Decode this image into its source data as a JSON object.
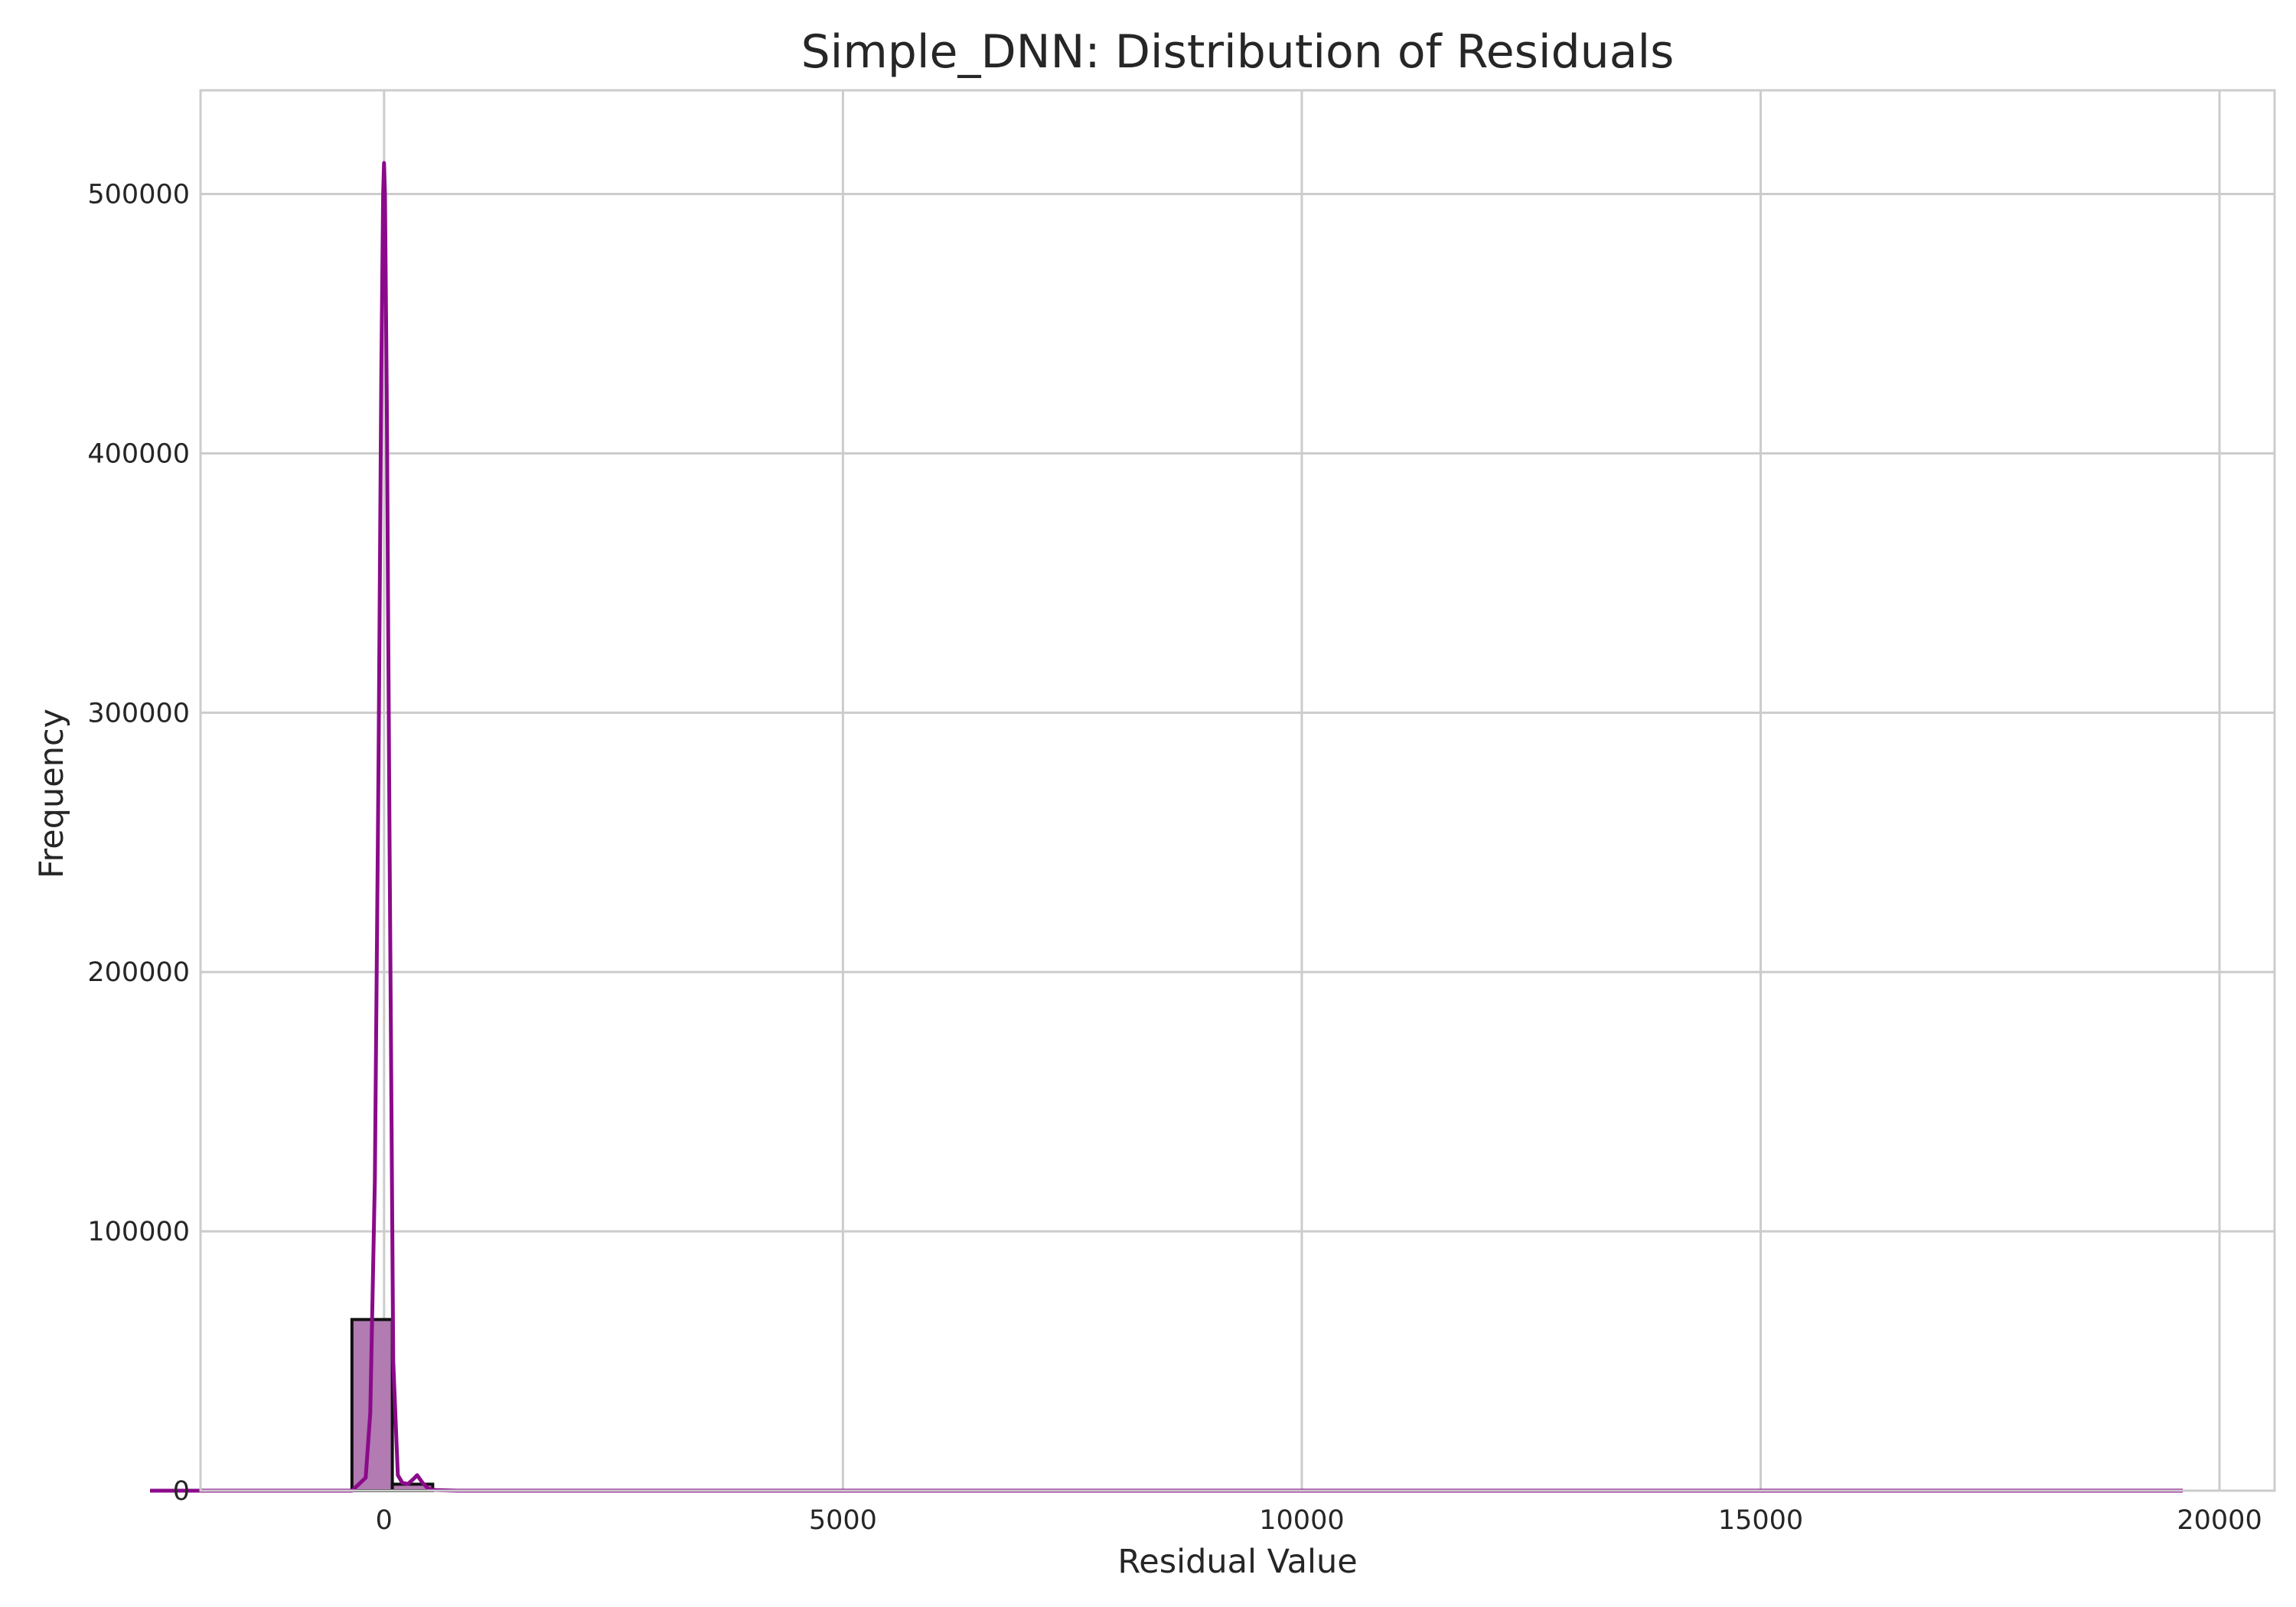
{
  "chart_data": {
    "type": "bar",
    "title": "Simple_DNN: Distribution of Residuals",
    "xlabel": "Residual Value",
    "ylabel": "Frequency",
    "xlim": [
      -2000,
      20600
    ],
    "ylim": [
      0,
      540000
    ],
    "xticks": [
      {
        "value": 0,
        "label": "0"
      },
      {
        "value": 5000,
        "label": "5000"
      },
      {
        "value": 10000,
        "label": "10000"
      },
      {
        "value": 15000,
        "label": "15000"
      },
      {
        "value": 20000,
        "label": "20000"
      }
    ],
    "yticks": [
      {
        "value": 0,
        "label": "0"
      },
      {
        "value": 100000,
        "label": "100000"
      },
      {
        "value": 200000,
        "label": "200000"
      },
      {
        "value": 300000,
        "label": "300000"
      },
      {
        "value": 400000,
        "label": "400000"
      },
      {
        "value": 500000,
        "label": "500000"
      }
    ],
    "grid": true,
    "bins": [
      {
        "x0": -350,
        "x1": 90,
        "count": 66000
      },
      {
        "x0": 90,
        "x1": 530,
        "count": 2500
      }
    ],
    "kde": {
      "x": [
        -2550,
        -350,
        -200,
        -150,
        -100,
        -60,
        -30,
        -10,
        0,
        10,
        30,
        60,
        100,
        150,
        200,
        260,
        320,
        360,
        420,
        480,
        560,
        800,
        19600
      ],
      "y": [
        0,
        0,
        5000,
        30000,
        120000,
        280000,
        430000,
        500000,
        512000,
        500000,
        420000,
        250000,
        50000,
        6000,
        3000,
        2600,
        4500,
        6000,
        3000,
        800,
        200,
        0,
        0
      ]
    },
    "colors": {
      "bar_fill": "#b27bb2",
      "bar_edge": "#111111",
      "kde_line": "#8b0a8b",
      "baseline": "#c77bc7",
      "grid": "#cccccc"
    }
  }
}
